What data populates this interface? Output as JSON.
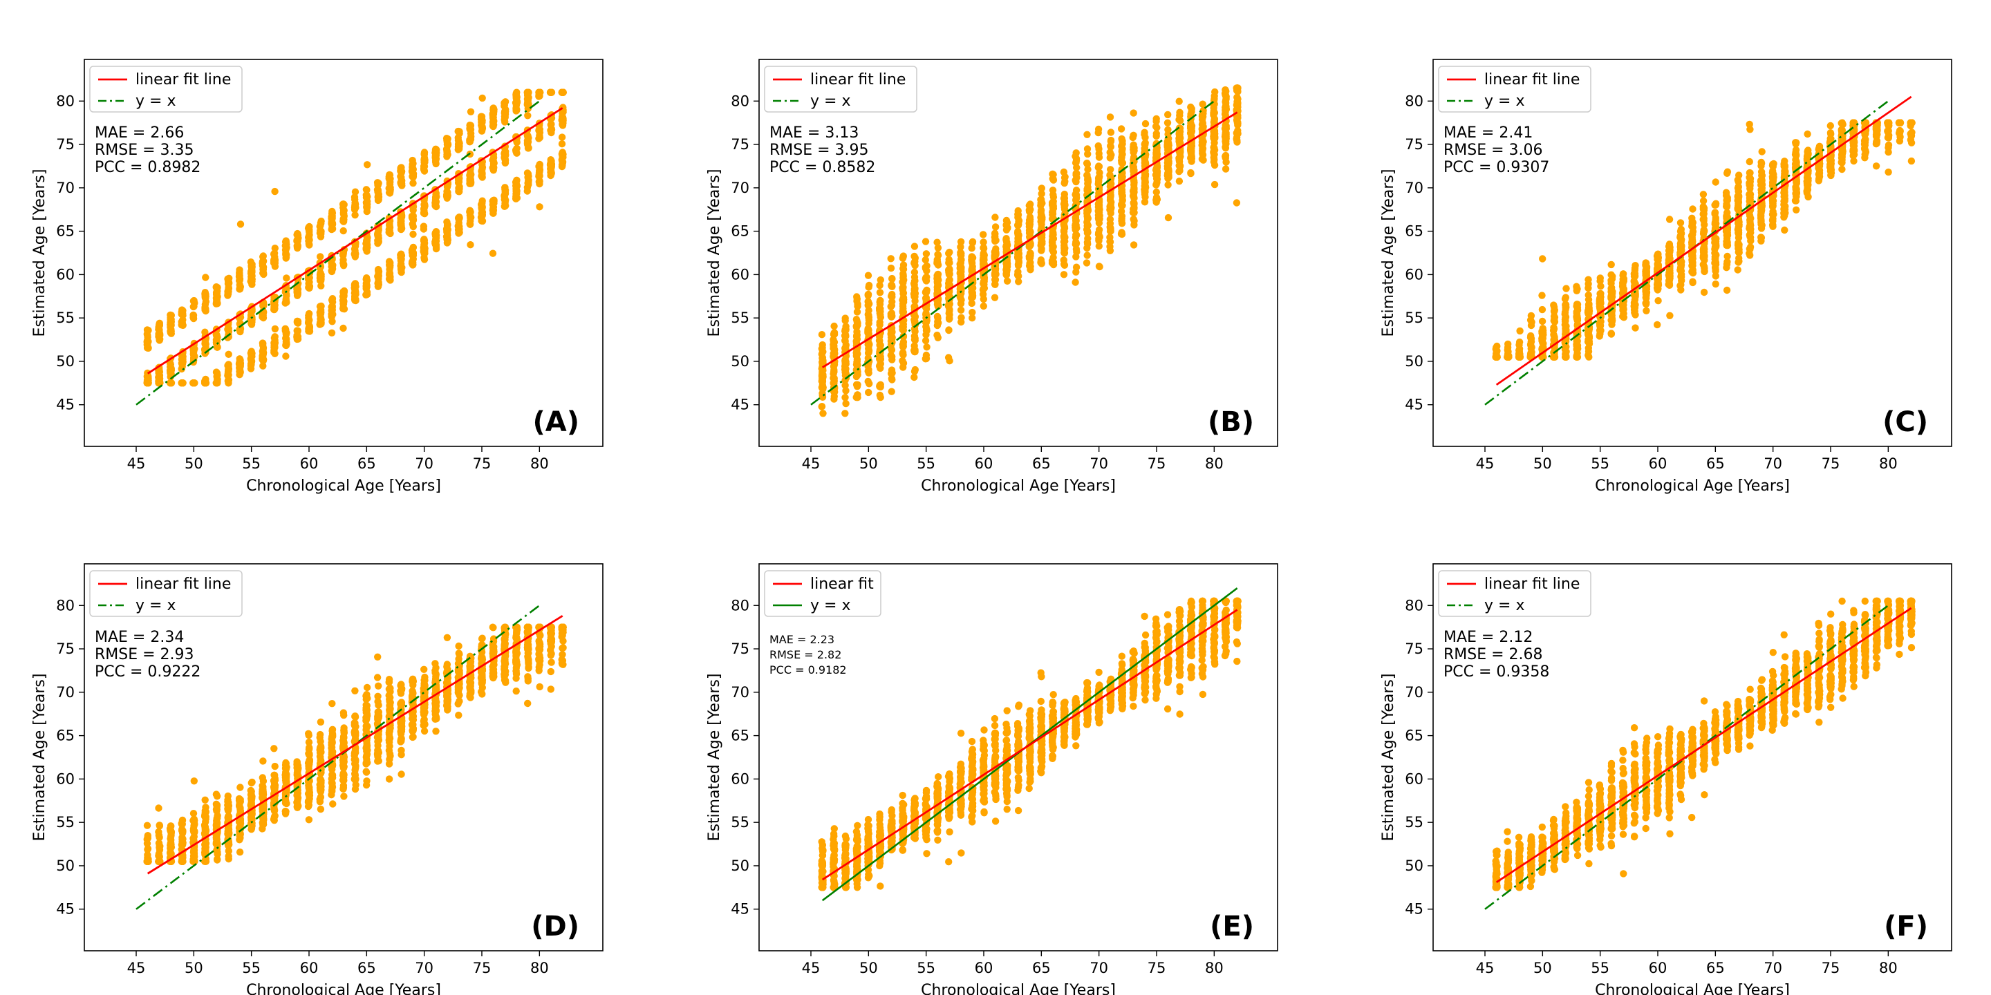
{
  "figure": {
    "panels_layout": "2 rows x 3 columns"
  },
  "colors": {
    "scatter": "#FFA500",
    "fit_line": "#FF0000",
    "identity_line": "#008000",
    "axes": "#000000"
  },
  "chart_data": [
    {
      "type": "scatter",
      "panel": "(A)",
      "xlabel": "Chronological Age [Years]",
      "ylabel": "Estimated Age [Years]",
      "xlim": [
        40.5,
        85.5
      ],
      "ylim": [
        40.2,
        84.8
      ],
      "xticks": [
        45,
        50,
        55,
        60,
        65,
        70,
        75,
        80
      ],
      "yticks": [
        45,
        50,
        55,
        60,
        65,
        70,
        75,
        80
      ],
      "legend": {
        "position": "top-left",
        "fit_label": "linear fit line",
        "identity_label": "y = x"
      },
      "metrics": {
        "mae": "MAE = 2.66",
        "rmse": "RMSE = 3.35",
        "pcc": "PCC = 0.8982"
      },
      "fit_line": {
        "x": [
          46,
          82
        ],
        "y": [
          48.6,
          79.2
        ]
      },
      "identity_line": {
        "x": [
          45,
          80
        ],
        "y": [
          45,
          80
        ]
      },
      "scatter_range": {
        "x": [
          46,
          82
        ],
        "y": [
          47.5,
          81
        ]
      },
      "points_spread": 7.0,
      "banded": true
    },
    {
      "type": "scatter",
      "panel": "(B)",
      "xlabel": "Chronological Age [Years]",
      "ylabel": "Estimated Age [Years]",
      "xlim": [
        40.5,
        85.5
      ],
      "ylim": [
        40.2,
        84.8
      ],
      "xticks": [
        45,
        50,
        55,
        60,
        65,
        70,
        75,
        80
      ],
      "yticks": [
        45,
        50,
        55,
        60,
        65,
        70,
        75,
        80
      ],
      "legend": {
        "position": "top-left",
        "fit_label": "linear fit line",
        "identity_label": "y = x"
      },
      "metrics": {
        "mae": "MAE = 3.13",
        "rmse": "RMSE = 3.95",
        "pcc": "PCC = 0.8582"
      },
      "fit_line": {
        "x": [
          46,
          82
        ],
        "y": [
          49.3,
          78.7
        ]
      },
      "identity_line": {
        "x": [
          45,
          80
        ],
        "y": [
          45,
          80
        ]
      },
      "scatter_range": {
        "x": [
          46,
          82
        ],
        "y": [
          44,
          81.5
        ]
      },
      "points_spread": 8.5,
      "banded": false
    },
    {
      "type": "scatter",
      "panel": "(C)",
      "xlabel": "Chronological Age [Years]",
      "ylabel": "Estimated Age [Years]",
      "xlim": [
        40.5,
        85.5
      ],
      "ylim": [
        40.2,
        84.8
      ],
      "xticks": [
        45,
        50,
        55,
        60,
        65,
        70,
        75,
        80
      ],
      "yticks": [
        45,
        50,
        55,
        60,
        65,
        70,
        75,
        80
      ],
      "legend": {
        "position": "top-left",
        "fit_label": "linear fit line",
        "identity_label": "y = x"
      },
      "metrics": {
        "mae": "MAE = 2.41",
        "rmse": "RMSE = 3.06",
        "pcc": "PCC = 0.9307"
      },
      "fit_line": {
        "x": [
          46,
          82
        ],
        "y": [
          47.3,
          80.5
        ]
      },
      "identity_line": {
        "x": [
          45,
          80
        ],
        "y": [
          45,
          80
        ]
      },
      "scatter_range": {
        "x": [
          46,
          82
        ],
        "y": [
          50.5,
          77.5
        ]
      },
      "points_spread": 6.5,
      "banded": false
    },
    {
      "type": "scatter",
      "panel": "(D)",
      "xlabel": "Chronological Age [Years]",
      "ylabel": "Estimated Age [Years]",
      "xlim": [
        40.5,
        85.5
      ],
      "ylim": [
        40.2,
        84.8
      ],
      "xticks": [
        45,
        50,
        55,
        60,
        65,
        70,
        75,
        80
      ],
      "yticks": [
        45,
        50,
        55,
        60,
        65,
        70,
        75,
        80
      ],
      "legend": {
        "position": "top-left",
        "fit_label": "linear fit line",
        "identity_label": "y = x"
      },
      "metrics": {
        "mae": "MAE = 2.34",
        "rmse": "RMSE = 2.93",
        "pcc": "PCC = 0.9222"
      },
      "fit_line": {
        "x": [
          46,
          82
        ],
        "y": [
          49.1,
          78.8
        ]
      },
      "identity_line": {
        "x": [
          45,
          80
        ],
        "y": [
          45,
          80
        ]
      },
      "scatter_range": {
        "x": [
          46,
          82
        ],
        "y": [
          50.5,
          77.5
        ]
      },
      "points_spread": 6.5,
      "banded": false
    },
    {
      "type": "scatter",
      "panel": "(E)",
      "xlabel": "Chronological Age [Years]",
      "ylabel": "Estimated Age [Years]",
      "xlim": [
        40.5,
        85.5
      ],
      "ylim": [
        40.2,
        84.8
      ],
      "xticks": [
        45,
        50,
        55,
        60,
        65,
        70,
        75,
        80
      ],
      "yticks": [
        45,
        50,
        55,
        60,
        65,
        70,
        75,
        80
      ],
      "legend": {
        "position": "top-left",
        "fit_label": "linear fit",
        "identity_label": "y = x"
      },
      "metrics": {
        "mae": "MAE = 2.23",
        "rmse": "RMSE = 2.82",
        "pcc": "PCC = 0.9182"
      },
      "metrics_small": true,
      "identity_solid": true,
      "fit_line": {
        "x": [
          46,
          82
        ],
        "y": [
          48.4,
          79.5
        ]
      },
      "identity_line": {
        "x": [
          46,
          82
        ],
        "y": [
          46,
          82
        ]
      },
      "scatter_range": {
        "x": [
          46,
          82
        ],
        "y": [
          47.5,
          80.5
        ]
      },
      "points_spread": 6.0,
      "banded": false
    },
    {
      "type": "scatter",
      "panel": "(F)",
      "xlabel": "Chronological Age [Years]",
      "ylabel": "Estimated Age [Years]",
      "xlim": [
        40.5,
        85.5
      ],
      "ylim": [
        40.2,
        84.8
      ],
      "xticks": [
        45,
        50,
        55,
        60,
        65,
        70,
        75,
        80
      ],
      "yticks": [
        45,
        50,
        55,
        60,
        65,
        70,
        75,
        80
      ],
      "legend": {
        "position": "top-left",
        "fit_label": "linear fit line",
        "identity_label": "y = x"
      },
      "metrics": {
        "mae": "MAE = 2.12",
        "rmse": "RMSE = 2.68",
        "pcc": "PCC = 0.9358"
      },
      "fit_line": {
        "x": [
          46,
          82
        ],
        "y": [
          48.1,
          79.7
        ]
      },
      "identity_line": {
        "x": [
          45,
          80
        ],
        "y": [
          45,
          80
        ]
      },
      "scatter_range": {
        "x": [
          46,
          82
        ],
        "y": [
          47.5,
          80.5
        ]
      },
      "points_spread": 6.0,
      "banded": false
    }
  ]
}
